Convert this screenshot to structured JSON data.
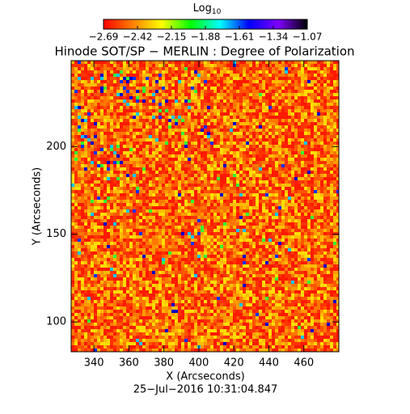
{
  "chart_data": {
    "type": "heatmap",
    "title": "Hinode SOT/SP − MERLIN : Degree of Polarization",
    "xlabel": "X (Arcseconds)",
    "ylabel": "Y (Arcseconds)",
    "footer": "25−Jul−2016 10:31:04.847",
    "xlim": [
      327,
      480
    ],
    "xticks": [
      340,
      360,
      380,
      400,
      420,
      440,
      460
    ],
    "ylim": [
      83,
      249
    ],
    "yticks": [
      100,
      150,
      200
    ],
    "colorbar": {
      "label": "Log",
      "label_subscript": "10",
      "lim": [
        -2.69,
        -1.07
      ],
      "ticks": [
        {
          "value": -2.69,
          "label": "−2.69"
        },
        {
          "value": -2.42,
          "label": "−2.42"
        },
        {
          "value": -2.15,
          "label": "−2.15"
        },
        {
          "value": -1.88,
          "label": "−1.88"
        },
        {
          "value": -1.61,
          "label": "−1.61"
        },
        {
          "value": -1.34,
          "label": "−1.34"
        },
        {
          "value": -1.07,
          "label": "−1.07"
        }
      ],
      "colors": [
        "#ff0000",
        "#ff7f00",
        "#ffff00",
        "#00ff00",
        "#00ffff",
        "#0000ff",
        "#7f00ff",
        "#000000"
      ]
    }
  }
}
